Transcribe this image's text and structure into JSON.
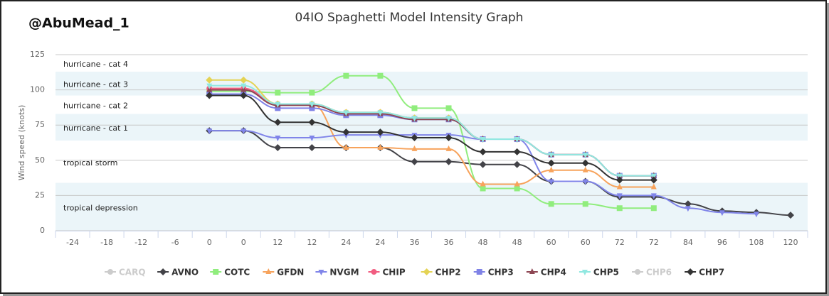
{
  "chart_data": {
    "type": "line",
    "watermark": "@AbuMead_1",
    "title": "04IO Spaghetti Model Intensity Graph",
    "y_label": "Wind speed (knots)",
    "categories": [
      -24,
      -18,
      -12,
      -6,
      0,
      0,
      12,
      12,
      24,
      24,
      36,
      36,
      48,
      48,
      60,
      60,
      72,
      72,
      84,
      96,
      108,
      120
    ],
    "ylim": [
      0,
      125
    ],
    "yticks": [
      0,
      25,
      50,
      75,
      100,
      125
    ],
    "grid": true,
    "plot_bands": [
      {
        "label": "tropical depression",
        "from": 0,
        "to": 34,
        "color": "#ebf5f9"
      },
      {
        "label": "tropical storm",
        "from": 34,
        "to": 64,
        "color": "#ffffff"
      },
      {
        "label": "hurricane - cat 1",
        "from": 64,
        "to": 83,
        "color": "#ebf5f9"
      },
      {
        "label": "hurricane - cat 2",
        "from": 83,
        "to": 96,
        "color": "#ffffff"
      },
      {
        "label": "hurricane - cat 3",
        "from": 96,
        "to": 113,
        "color": "#ebf5f9"
      },
      {
        "label": "hurricane - cat 4",
        "from": 113,
        "to": 137,
        "color": "#ffffff"
      }
    ],
    "series": [
      {
        "name": "CARQ",
        "color": "#cccccc",
        "marker": "circle",
        "visible": false,
        "values": [
          null,
          null,
          null,
          null,
          null,
          null,
          null,
          null,
          null,
          null,
          null,
          null,
          null,
          null,
          null,
          null,
          null,
          null,
          null,
          null,
          null,
          null
        ]
      },
      {
        "name": "AVNO",
        "color": "#434348",
        "marker": "diamond",
        "visible": true,
        "values": [
          null,
          null,
          null,
          null,
          71,
          71,
          59,
          59,
          59,
          59,
          49,
          49,
          47,
          47,
          35,
          35,
          24,
          24,
          19,
          14,
          13,
          11
        ]
      },
      {
        "name": "COTC",
        "color": "#90ed7d",
        "marker": "square",
        "visible": true,
        "values": [
          null,
          null,
          null,
          null,
          99,
          99,
          98,
          98,
          110,
          110,
          87,
          87,
          30,
          30,
          19,
          19,
          16,
          16,
          null,
          null,
          null,
          null
        ]
      },
      {
        "name": "GFDN",
        "color": "#f7a35c",
        "marker": "triangle",
        "visible": true,
        "values": [
          null,
          null,
          null,
          null,
          101,
          101,
          90,
          90,
          59,
          59,
          58,
          58,
          33,
          33,
          43,
          43,
          31,
          31,
          null,
          null,
          null,
          null
        ]
      },
      {
        "name": "NVGM",
        "color": "#8085e9",
        "marker": "triangle-down",
        "visible": true,
        "values": [
          null,
          null,
          null,
          null,
          71,
          71,
          66,
          66,
          68,
          68,
          68,
          68,
          65,
          65,
          35,
          35,
          25,
          25,
          16,
          13,
          12,
          null
        ]
      },
      {
        "name": "CHIP",
        "color": "#f15c80",
        "marker": "circle",
        "visible": true,
        "values": [
          null,
          null,
          null,
          null,
          101,
          101,
          90,
          90,
          84,
          84,
          80,
          80,
          65,
          65,
          54,
          54,
          39,
          39,
          null,
          null,
          null,
          null
        ]
      },
      {
        "name": "CHP2",
        "color": "#e4d354",
        "marker": "diamond",
        "visible": true,
        "values": [
          null,
          null,
          null,
          null,
          107,
          107,
          90,
          90,
          84,
          84,
          80,
          80,
          65,
          65,
          54,
          54,
          39,
          39,
          null,
          null,
          null,
          null
        ]
      },
      {
        "name": "CHP3",
        "color": "#7f82e6",
        "marker": "square",
        "visible": true,
        "values": [
          null,
          null,
          null,
          null,
          97,
          97,
          87,
          87,
          82,
          82,
          79,
          79,
          65,
          65,
          54,
          54,
          39,
          39,
          null,
          null,
          null,
          null
        ]
      },
      {
        "name": "CHP4",
        "color": "#8d4653",
        "marker": "triangle",
        "visible": true,
        "values": [
          null,
          null,
          null,
          null,
          100,
          100,
          89,
          89,
          83,
          83,
          79,
          79,
          65,
          65,
          54,
          54,
          39,
          39,
          null,
          null,
          null,
          null
        ]
      },
      {
        "name": "CHP5",
        "color": "#91e8e1",
        "marker": "triangle-down",
        "visible": true,
        "values": [
          null,
          null,
          null,
          null,
          103,
          103,
          90,
          90,
          84,
          84,
          80,
          80,
          65,
          65,
          54,
          54,
          39,
          39,
          null,
          null,
          null,
          null
        ]
      },
      {
        "name": "CHP6",
        "color": "#cccccc",
        "marker": "circle",
        "visible": false,
        "values": [
          null,
          null,
          null,
          null,
          null,
          null,
          null,
          null,
          null,
          null,
          null,
          null,
          null,
          null,
          null,
          null,
          null,
          null,
          null,
          null,
          null,
          null
        ]
      },
      {
        "name": "CHP7",
        "color": "#333333",
        "marker": "diamond",
        "visible": true,
        "values": [
          null,
          null,
          null,
          null,
          96,
          96,
          77,
          77,
          70,
          70,
          66,
          66,
          56,
          56,
          48,
          48,
          36,
          36,
          null,
          null,
          null,
          null
        ]
      }
    ]
  }
}
